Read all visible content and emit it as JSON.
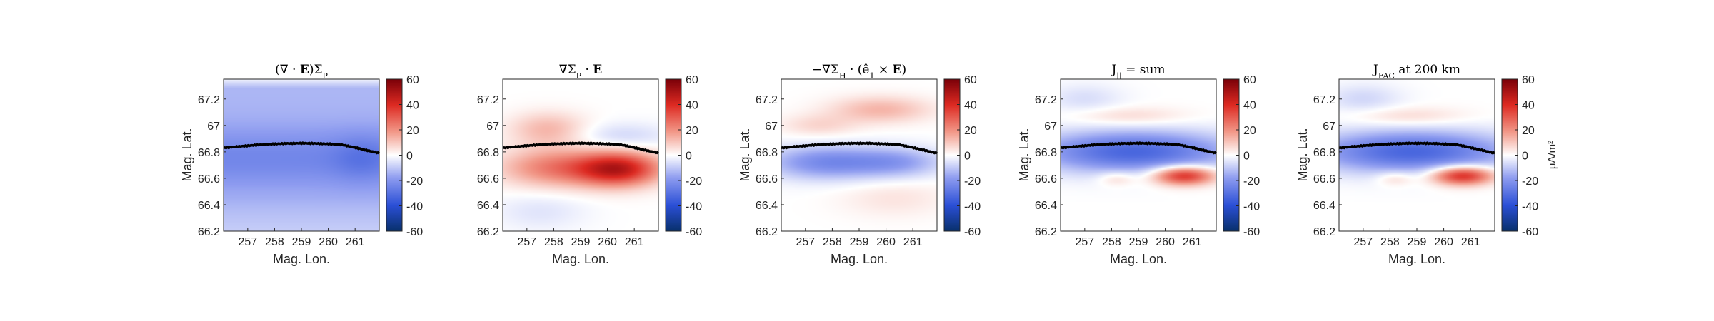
{
  "chart_data": [
    {
      "type": "heatmap",
      "title": "(∇ · E)Σ_P",
      "xlabel": "Mag. Lon.",
      "ylabel": "Mag. Lat.",
      "xlim": [
        256.1,
        261.9
      ],
      "ylim": [
        66.2,
        67.35
      ],
      "xticks": [
        257,
        258,
        259,
        260,
        261
      ],
      "yticks": [
        66.2,
        66.4,
        66.6,
        66.8,
        67,
        67.2
      ],
      "ytick_labels": [
        "66.2",
        "66.4",
        "66.6",
        "66.8",
        "67",
        "67.2"
      ],
      "colorbar": {
        "min": -60,
        "max": 60,
        "ticks": [
          -60,
          -40,
          -20,
          0,
          20,
          40,
          60
        ],
        "colormap": "red-white-blue",
        "unit": ""
      },
      "boundary_line": {
        "color": "#000000"
      }
    },
    {
      "type": "heatmap",
      "title": "∇Σ_P · E",
      "xlabel": "Mag. Lon.",
      "ylabel": "",
      "xlim": [
        256.1,
        261.9
      ],
      "ylim": [
        66.2,
        67.35
      ],
      "xticks": [
        257,
        258,
        259,
        260,
        261
      ],
      "yticks": [
        66.2,
        66.4,
        66.6,
        66.8,
        67,
        67.2
      ],
      "ytick_labels": [
        "66.2",
        "66.4",
        "66.6",
        "66.8",
        "67",
        "67.2"
      ],
      "colorbar": {
        "min": -60,
        "max": 60,
        "ticks": [
          -60,
          -40,
          -20,
          0,
          20,
          40,
          60
        ],
        "colormap": "red-white-blue",
        "unit": ""
      },
      "boundary_line": {
        "color": "#000000"
      }
    },
    {
      "type": "heatmap",
      "title": "−∇Σ_H · (ê_1 × E)",
      "xlabel": "Mag. Lon.",
      "ylabel": "Mag. Lat.",
      "xlim": [
        256.1,
        261.9
      ],
      "ylim": [
        66.2,
        67.35
      ],
      "xticks": [
        257,
        258,
        259,
        260,
        261
      ],
      "yticks": [
        66.2,
        66.4,
        66.6,
        66.8,
        67,
        67.2
      ],
      "ytick_labels": [
        "66.2",
        "66.4",
        "66.6",
        "66.8",
        "67",
        "67.2"
      ],
      "colorbar": {
        "min": -60,
        "max": 60,
        "ticks": [
          -60,
          -40,
          -20,
          0,
          20,
          40,
          60
        ],
        "colormap": "red-white-blue",
        "unit": ""
      },
      "boundary_line": {
        "color": "#000000"
      }
    },
    {
      "type": "heatmap",
      "title": "J_|| = sum",
      "xlabel": "Mag. Lon.",
      "ylabel": "Mag. Lat.",
      "xlim": [
        256.1,
        261.9
      ],
      "ylim": [
        66.2,
        67.35
      ],
      "xticks": [
        257,
        258,
        259,
        260,
        261
      ],
      "yticks": [
        66.2,
        66.4,
        66.6,
        66.8,
        67,
        67.2
      ],
      "ytick_labels": [
        "66.2",
        "66.4",
        "66.6",
        "66.8",
        "67",
        "67.2"
      ],
      "colorbar": {
        "min": -60,
        "max": 60,
        "ticks": [
          -60,
          -40,
          -20,
          0,
          20,
          40,
          60
        ],
        "colormap": "red-white-blue",
        "unit": ""
      },
      "boundary_line": {
        "color": "#000000"
      }
    },
    {
      "type": "heatmap",
      "title": "J_FAC at 200 km",
      "xlabel": "Mag. Lon.",
      "ylabel": "Mag. Lat.",
      "xlim": [
        256.1,
        261.9
      ],
      "ylim": [
        66.2,
        67.35
      ],
      "xticks": [
        257,
        258,
        259,
        260,
        261
      ],
      "yticks": [
        66.2,
        66.4,
        66.6,
        66.8,
        67,
        67.2
      ],
      "ytick_labels": [
        "66.2",
        "66.4",
        "66.6",
        "66.8",
        "67",
        "67.2"
      ],
      "colorbar": {
        "min": -60,
        "max": 60,
        "ticks": [
          -60,
          -40,
          -20,
          0,
          20,
          40,
          60
        ],
        "colormap": "red-white-blue",
        "unit": "μA/m²"
      },
      "boundary_line": {
        "color": "#000000"
      }
    }
  ]
}
